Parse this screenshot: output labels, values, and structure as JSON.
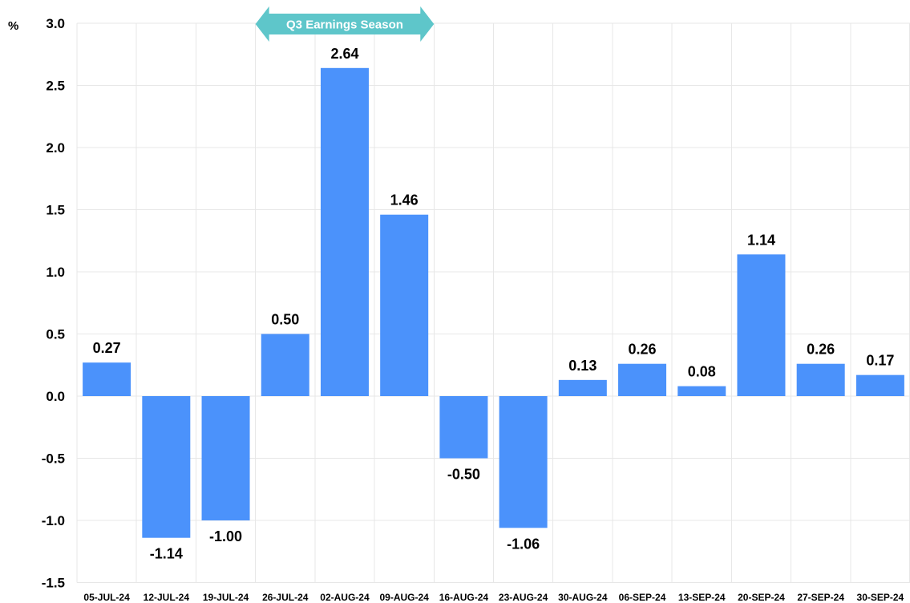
{
  "chart_data": {
    "type": "bar",
    "ylabel": "%",
    "ylim": [
      -1.5,
      3.0
    ],
    "yticks": [
      3.0,
      2.5,
      2.0,
      1.5,
      1.0,
      0.5,
      0.0,
      -0.5,
      -1.0,
      -1.5
    ],
    "ytick_labels": [
      "3.0",
      "2.5",
      "2.0",
      "1.5",
      "1.0",
      "0.5",
      "0.0",
      "-0.5",
      "-1.0",
      "-1.5"
    ],
    "categories": [
      "05-JUL-24",
      "12-JUL-24",
      "19-JUL-24",
      "26-JUL-24",
      "02-AUG-24",
      "09-AUG-24",
      "16-AUG-24",
      "23-AUG-24",
      "30-AUG-24",
      "06-SEP-24",
      "13-SEP-24",
      "20-SEP-24",
      "27-SEP-24",
      "30-SEP-24"
    ],
    "values": [
      0.27,
      -1.14,
      -1.0,
      0.5,
      2.64,
      1.46,
      -0.5,
      -1.06,
      0.13,
      0.26,
      0.08,
      1.14,
      0.26,
      0.17
    ],
    "data_labels": [
      "0.27",
      "-1.14",
      "-1.00",
      "0.50",
      "2.64",
      "1.46",
      "-0.50",
      "-1.06",
      "0.13",
      "0.26",
      "0.08",
      "1.14",
      "0.26",
      "0.17"
    ],
    "grid": true,
    "bar_color": "#4b92fb",
    "annotation": {
      "text": "Q3 Earnings Season",
      "from": "26-JUL-24",
      "to": "09-AUG-24",
      "color": "#5ec6ca",
      "text_color": "#ffffff"
    }
  }
}
